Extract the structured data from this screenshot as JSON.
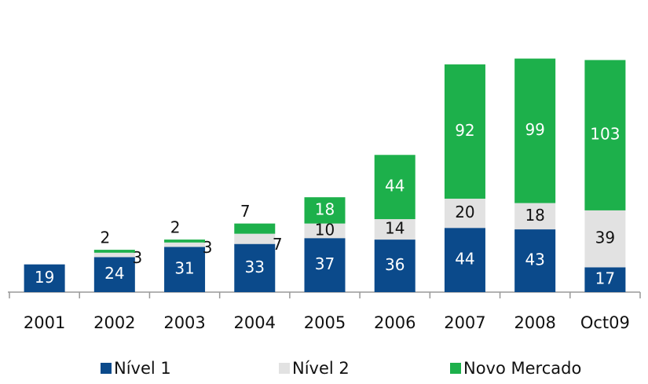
{
  "chart_data": {
    "type": "bar",
    "stacked": true,
    "categories": [
      "2001",
      "2002",
      "2003",
      "2004",
      "2005",
      "2006",
      "2007",
      "2008",
      "Oct09"
    ],
    "series": [
      {
        "name": "Nível 1",
        "color": "#0b4a8b",
        "values": [
          19,
          24,
          31,
          33,
          37,
          36,
          44,
          43,
          17
        ]
      },
      {
        "name": "Nível 2",
        "color": "#e2e2e2",
        "values": [
          null,
          3,
          3,
          7,
          10,
          14,
          20,
          18,
          39
        ]
      },
      {
        "name": "Novo Mercado",
        "color": "#1db04b",
        "values": [
          null,
          2,
          2,
          7,
          18,
          44,
          92,
          99,
          103
        ]
      }
    ],
    "ylim": [
      0,
      170
    ],
    "legend": "bottom"
  }
}
